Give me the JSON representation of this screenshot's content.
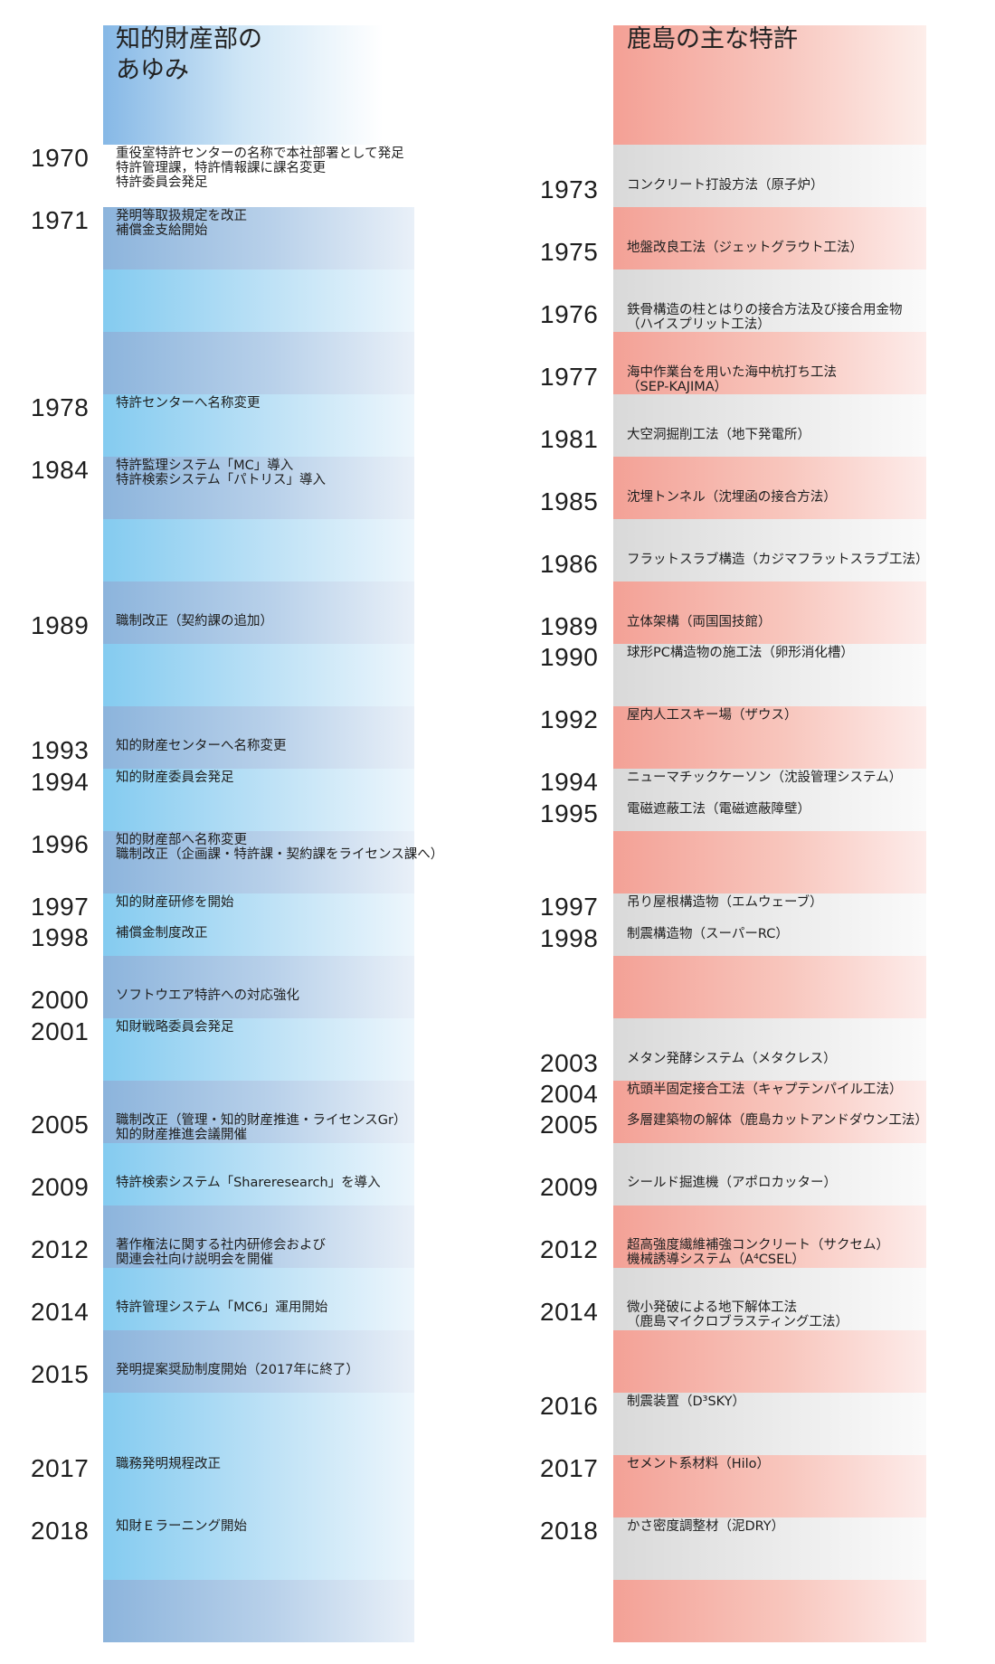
{
  "left": {
    "title_line1": "知的財産部の",
    "title_line2": "あゆみ",
    "entries": [
      {
        "year": "1970",
        "lines": [
          "重役室特許センターの名称で本社部署として発足",
          "特許管理課，特許情報課に課名変更",
          "特許委員会発足"
        ]
      },
      {
        "year": "1971",
        "lines": [
          "発明等取扱規定を改正",
          "補償金支給開始"
        ]
      },
      {
        "year": "1978",
        "lines": [
          "特許センターへ名称変更"
        ]
      },
      {
        "year": "1984",
        "lines": [
          "特許監理システム「MC」導入",
          "特許検索システム「パトリス」導入"
        ]
      },
      {
        "year": "1989",
        "lines": [
          "職制改正（契約課の追加）"
        ]
      },
      {
        "year": "1993",
        "lines": [
          "知的財産センターへ名称変更"
        ]
      },
      {
        "year": "1994",
        "lines": [
          "知的財産委員会発足"
        ]
      },
      {
        "year": "1996",
        "lines": [
          "知的財産部へ名称変更",
          "職制改正（企画課・特許課・契約課をライセンス課へ）"
        ]
      },
      {
        "year": "1997",
        "lines": [
          "知的財産研修を開始"
        ]
      },
      {
        "year": "1998",
        "lines": [
          "補償金制度改正"
        ]
      },
      {
        "year": "2000",
        "lines": [
          "ソフトウエア特許への対応強化"
        ]
      },
      {
        "year": "2001",
        "lines": [
          "知財戦略委員会発足"
        ]
      },
      {
        "year": "2005",
        "lines": [
          "職制改正（管理・知的財産推進・ライセンスGr）",
          "知的財産推進会議開催"
        ]
      },
      {
        "year": "2009",
        "lines": [
          "特許検索システム「Shareresearch」を導入"
        ]
      },
      {
        "year": "2012",
        "lines": [
          "著作権法に関する社内研修会および",
          "関連会社向け説明会を開催"
        ]
      },
      {
        "year": "2014",
        "lines": [
          "特許管理システム「MC6」運用開始"
        ]
      },
      {
        "year": "2015",
        "lines": [
          "発明提案奨励制度開始（2017年に終了）"
        ]
      },
      {
        "year": "2017",
        "lines": [
          "職務発明規程改正"
        ]
      },
      {
        "year": "2018",
        "lines": [
          "知財Ｅラーニング開始"
        ]
      }
    ]
  },
  "right": {
    "title": "鹿島の主な特許",
    "entries": [
      {
        "year": "1973",
        "lines": [
          "コンクリート打設方法（原子炉）"
        ]
      },
      {
        "year": "1975",
        "lines": [
          "地盤改良工法（ジェットグラウト工法）"
        ]
      },
      {
        "year": "1976",
        "lines": [
          "鉄骨構造の柱とはりの接合方法及び接合用金物",
          "（ハイスプリット工法）"
        ]
      },
      {
        "year": "1977",
        "lines": [
          "海中作業台を用いた海中杭打ち工法",
          "（SEP-KAJIMA）"
        ]
      },
      {
        "year": "1981",
        "lines": [
          "大空洞掘削工法（地下発電所）"
        ]
      },
      {
        "year": "1985",
        "lines": [
          "沈埋トンネル（沈埋函の接合方法）"
        ]
      },
      {
        "year": "1986",
        "lines": [
          "フラットスラブ構造（カジマフラットスラブ工法）"
        ]
      },
      {
        "year": "1989",
        "lines": [
          "立体架構（両国国技館）"
        ]
      },
      {
        "year": "1990",
        "lines": [
          "球形PC構造物の施工法（卵形消化槽）"
        ]
      },
      {
        "year": "1992",
        "lines": [
          "屋内人工スキー場（ザウス）"
        ]
      },
      {
        "year": "1994",
        "lines": [
          "ニューマチックケーソン（沈設管理システム）"
        ]
      },
      {
        "year": "1995",
        "lines": [
          "電磁遮蔽工法（電磁遮蔽障壁）"
        ]
      },
      {
        "year": "1997",
        "lines": [
          "吊り屋根構造物（エムウェーブ）"
        ]
      },
      {
        "year": "1998",
        "lines": [
          "制震構造物（スーパーRC）"
        ]
      },
      {
        "year": "2003",
        "lines": [
          "メタン発酵システム（メタクレス）"
        ]
      },
      {
        "year": "2004",
        "lines": [
          "杭頭半固定接合工法（キャプテンパイル工法）"
        ]
      },
      {
        "year": "2005",
        "lines": [
          "多層建築物の解体（鹿島カットアンドダウン工法）"
        ]
      },
      {
        "year": "2009",
        "lines": [
          "シールド掘進機（アポロカッター）"
        ]
      },
      {
        "year": "2012",
        "lines": [
          "超高強度繊維補強コンクリート（サクセム）",
          "機械誘導システム（A⁴CSEL）"
        ]
      },
      {
        "year": "2014",
        "lines": [
          "微小発破による地下解体工法",
          "（鹿島マイクロブラスティング工法）"
        ]
      },
      {
        "year": "2016",
        "lines": [
          "制震装置（D³SKY）"
        ]
      },
      {
        "year": "2017",
        "lines": [
          "セメント系材料（Hilo）"
        ]
      },
      {
        "year": "2018",
        "lines": [
          "かさ密度調整材（泥DRY）"
        ]
      }
    ]
  }
}
